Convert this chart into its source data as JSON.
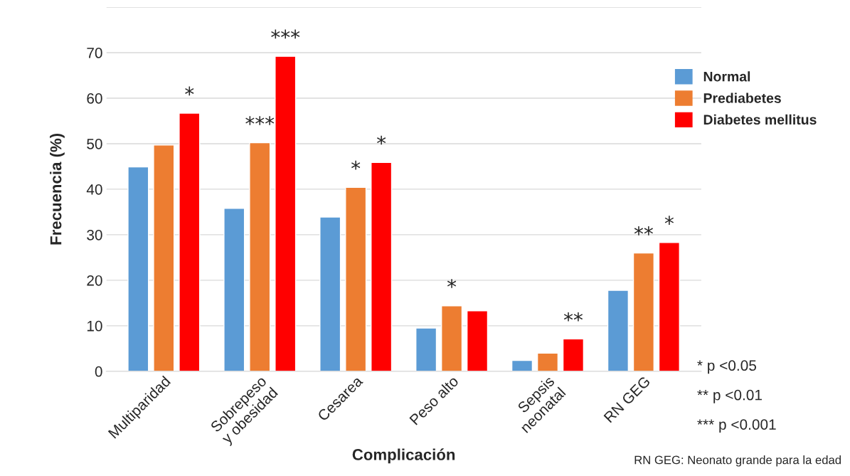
{
  "chart_data": {
    "type": "bar",
    "xlabel": "Complicación",
    "ylabel": "Frecuencia (%)",
    "categories": [
      "Multiparidad",
      "Sobrepeso\ny obesidad",
      "Cesarea",
      "Peso alto",
      "Sepsis\nneonatal",
      "RN GEG"
    ],
    "series": [
      {
        "name": "Normal",
        "color": "#5b9bd5",
        "values": [
          44.9,
          35.8,
          33.9,
          9.5,
          2.4,
          17.8
        ]
      },
      {
        "name": "Prediabetes",
        "color": "#ed7d31",
        "values": [
          49.7,
          50.2,
          40.4,
          14.4,
          4.0,
          26.0
        ],
        "value_labels": [
          null,
          "***",
          "*",
          "*",
          null,
          "**"
        ]
      },
      {
        "name": "Diabetes mellitus",
        "color": "#ff0000",
        "values": [
          56.7,
          69.2,
          45.9,
          13.3,
          7.1,
          28.3
        ],
        "value_labels": [
          "*",
          "***",
          "*",
          null,
          "**",
          "*"
        ]
      }
    ],
    "ylim": [
      0,
      80
    ],
    "yticks": [
      0,
      10,
      20,
      30,
      40,
      50,
      60,
      70,
      {
        "value": 80,
        "label": null
      }
    ],
    "grid": "y",
    "legend": "top right",
    "annotations": [
      "* p <0.05",
      "** p <0.01",
      "*** p <0.001",
      "RN GEG: Neonato grande para la edad"
    ]
  }
}
